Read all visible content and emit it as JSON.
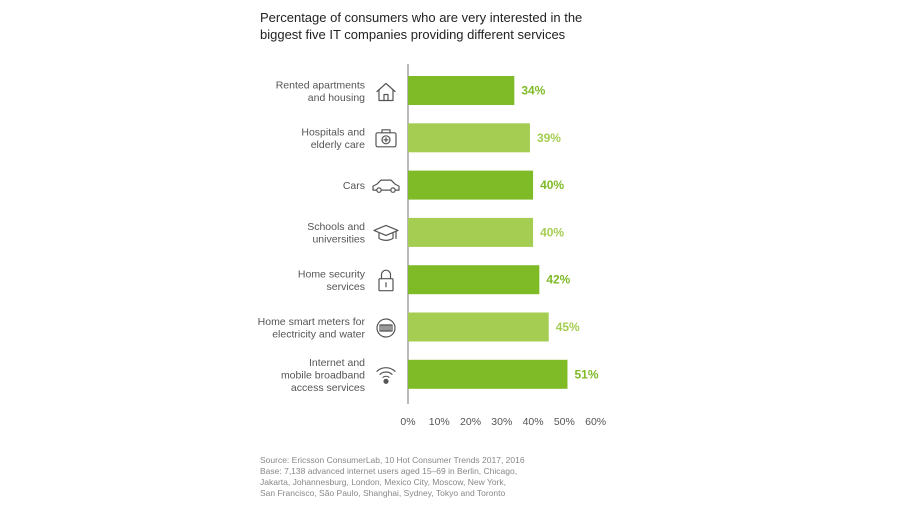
{
  "title_lines": [
    "Percentage of consumers who are very interested in the",
    "biggest five IT companies providing different services"
  ],
  "colors": {
    "dark_green": "#7fba27",
    "light_green": "#a5cd52",
    "axis": "#777777"
  },
  "chart_data": {
    "type": "bar",
    "orientation": "horizontal",
    "categories": [
      [
        "Rented apartments",
        "and housing"
      ],
      [
        "Hospitals and",
        "elderly care"
      ],
      [
        "Cars"
      ],
      [
        "Schools and",
        "universities"
      ],
      [
        "Home security",
        "services"
      ],
      [
        "Home smart meters for",
        "electricity and water"
      ],
      [
        "Internet and",
        "mobile broadband",
        "access services"
      ]
    ],
    "icons": [
      "house-icon",
      "first-aid-kit-icon",
      "car-icon",
      "graduation-cap-icon",
      "padlock-icon",
      "smart-meter-icon",
      "wifi-icon"
    ],
    "values": [
      34,
      39,
      40,
      40,
      42,
      45,
      51
    ],
    "value_labels": [
      "34%",
      "39%",
      "40%",
      "40%",
      "42%",
      "45%",
      "51%"
    ],
    "bar_colors": [
      "#7fba27",
      "#a5cd52",
      "#7fba27",
      "#a5cd52",
      "#7fba27",
      "#a5cd52",
      "#7fba27"
    ],
    "xlim": [
      0,
      60
    ],
    "xticks": [
      0,
      10,
      20,
      30,
      40,
      50,
      60
    ],
    "xtick_labels": [
      "0%",
      "10%",
      "20%",
      "30%",
      "40%",
      "50%",
      "60%"
    ],
    "grid": false
  },
  "source_lines": [
    "Source: Ericsson ConsumerLab, 10 Hot Consumer Trends 2017, 2016",
    "Base: 7,138 advanced internet users aged 15–69 in Berlin, Chicago,",
    "Jakarta, Johannesburg, London, Mexico City, Moscow, New York,",
    "San Francisco, São Paulo, Shanghai, Sydney, Tokyo and Toronto"
  ]
}
